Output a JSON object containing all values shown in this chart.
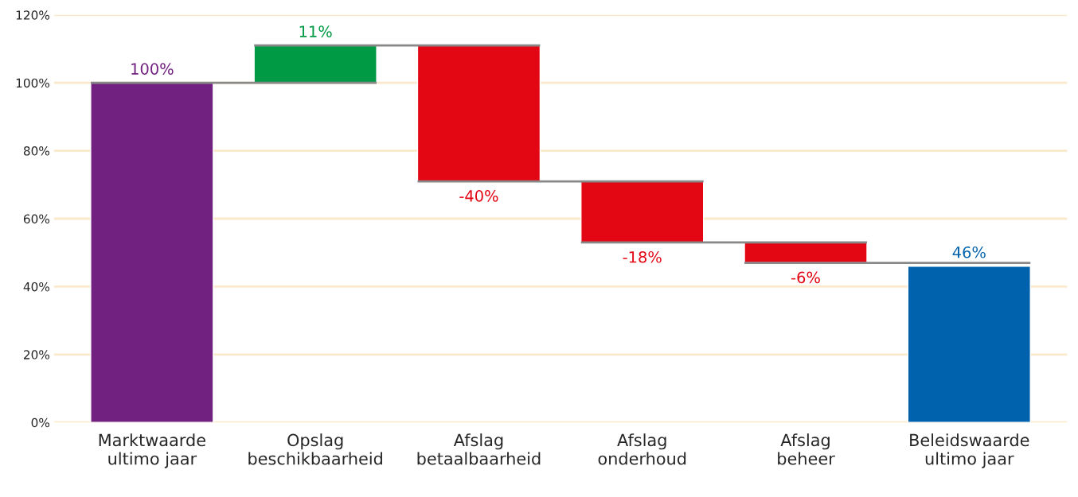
{
  "chart_data": {
    "type": "bar",
    "categories": [
      "Marktwaarde\nultimo jaar",
      "Opslag\nbeschikbaarheid",
      "Afslag\nbetaalbaarheid",
      "Afslag\nonderhoud",
      "Afslag\nbeheer",
      "Beleidswaarde\nultimo jaar"
    ],
    "values": [
      100,
      11,
      -40,
      -18,
      -6,
      46
    ],
    "base": [
      0,
      100,
      111,
      71,
      53,
      0
    ],
    "colors": [
      "#71217f",
      "#009a44",
      "#e30613",
      "#e30613",
      "#e30613",
      "#0062ad"
    ],
    "value_labels": [
      "100%",
      "11%",
      "-40%",
      "-18%",
      "-6%",
      "46%"
    ],
    "ylim": [
      0,
      120
    ],
    "yticks": [
      {
        "value": 0,
        "label": "0%"
      },
      {
        "value": 20,
        "label": "20%"
      },
      {
        "value": 40,
        "label": "40%"
      },
      {
        "value": 60,
        "label": "60%"
      },
      {
        "value": 80,
        "label": "80%"
      },
      {
        "value": 100,
        "label": "100%"
      },
      {
        "value": 120,
        "label": "120%"
      }
    ],
    "grid": "y",
    "legend": false
  }
}
